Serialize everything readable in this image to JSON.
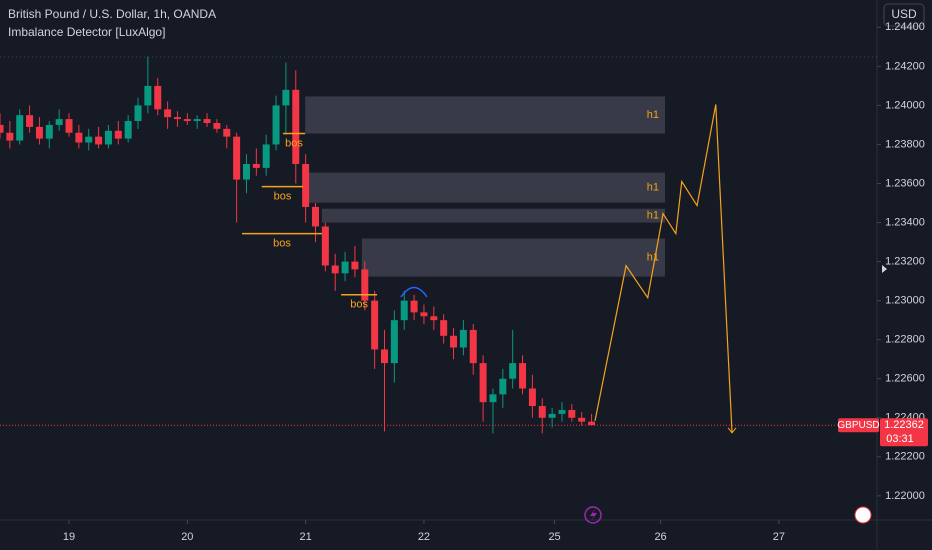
{
  "chart_data": {
    "type": "candlestick",
    "title": "British Pound / U.S. Dollar, 1h, OANDA",
    "indicator": "Imbalance Detector [LuxAlgo]",
    "currency": "USD",
    "up_color": "#089981",
    "down_color": "#f23645",
    "grid": false,
    "x": [
      -14,
      -12,
      -10,
      -8,
      -6,
      -4,
      -2,
      0,
      2,
      4,
      6,
      8,
      10,
      12,
      14,
      16,
      18,
      20,
      22,
      24,
      26,
      28,
      30,
      32,
      34,
      36,
      38,
      40,
      42,
      44,
      46,
      48,
      50,
      52,
      54,
      56,
      58,
      60,
      62,
      64,
      66,
      68,
      70,
      72,
      74,
      76,
      78,
      80,
      82,
      84,
      86,
      88,
      90,
      92,
      94,
      96,
      98,
      100,
      102,
      104,
      106
    ],
    "open": [
      1.239,
      1.2386,
      1.2382,
      1.2395,
      1.2389,
      1.2383,
      1.239,
      1.2393,
      1.2386,
      1.2381,
      1.2384,
      1.238,
      1.2387,
      1.2383,
      1.2392,
      1.24,
      1.241,
      1.2398,
      1.2394,
      1.2393,
      1.2392,
      1.2393,
      1.2391,
      1.2388,
      1.2384,
      1.2362,
      1.237,
      1.2368,
      1.238,
      1.24,
      1.2408,
      1.237,
      1.2348,
      1.2338,
      1.2318,
      1.2314,
      1.232,
      1.2316,
      1.23,
      1.2275,
      1.2268,
      1.229,
      1.23,
      1.2294,
      1.2292,
      1.229,
      1.2282,
      1.2276,
      1.2285,
      1.2268,
      1.2248,
      1.2252,
      1.226,
      1.2268,
      1.2255,
      1.2246,
      1.224,
      1.2242,
      1.2244,
      1.224,
      1.2238
    ],
    "high": [
      1.2396,
      1.2392,
      1.2398,
      1.24,
      1.2394,
      1.2392,
      1.2398,
      1.2396,
      1.239,
      1.2388,
      1.2389,
      1.239,
      1.2392,
      1.2395,
      1.2404,
      1.2425,
      1.2414,
      1.2402,
      1.2397,
      1.2396,
      1.2395,
      1.2396,
      1.2393,
      1.239,
      1.2386,
      1.2375,
      1.2378,
      1.2385,
      1.2405,
      1.2422,
      1.2418,
      1.2375,
      1.235,
      1.234,
      1.2324,
      1.2325,
      1.2328,
      1.232,
      1.2305,
      1.2285,
      1.2295,
      1.2305,
      1.2303,
      1.2298,
      1.2297,
      1.2293,
      1.2286,
      1.229,
      1.2288,
      1.2272,
      1.2255,
      1.2265,
      1.2285,
      1.2272,
      1.2262,
      1.225,
      1.2245,
      1.2248,
      1.2247,
      1.2243,
      1.2242
    ],
    "low": [
      1.2383,
      1.2378,
      1.238,
      1.2386,
      1.238,
      1.2378,
      1.2387,
      1.2384,
      1.2378,
      1.2377,
      1.2378,
      1.2378,
      1.238,
      1.2381,
      1.2388,
      1.2396,
      1.2395,
      1.2388,
      1.2389,
      1.239,
      1.2388,
      1.2389,
      1.2386,
      1.2378,
      1.234,
      1.2355,
      1.2364,
      1.2364,
      1.2377,
      1.2385,
      1.236,
      1.234,
      1.233,
      1.2315,
      1.2305,
      1.231,
      1.2312,
      1.2295,
      1.2265,
      1.2233,
      1.2258,
      1.2285,
      1.229,
      1.2288,
      1.2285,
      1.2278,
      1.227,
      1.2272,
      1.2262,
      1.2238,
      1.2232,
      1.2245,
      1.2255,
      1.2252,
      1.224,
      1.2232,
      1.2235,
      1.2238,
      1.2238,
      1.2236,
      1.22362
    ],
    "close": [
      1.2386,
      1.2382,
      1.2395,
      1.2389,
      1.2383,
      1.239,
      1.2393,
      1.2386,
      1.2381,
      1.2384,
      1.238,
      1.2387,
      1.2383,
      1.2392,
      1.24,
      1.241,
      1.2398,
      1.2394,
      1.2393,
      1.2392,
      1.2393,
      1.2391,
      1.2388,
      1.2384,
      1.2362,
      1.237,
      1.2368,
      1.238,
      1.24,
      1.2408,
      1.237,
      1.2348,
      1.2338,
      1.2318,
      1.2314,
      1.232,
      1.2316,
      1.23,
      1.2275,
      1.2268,
      1.229,
      1.23,
      1.2294,
      1.2292,
      1.229,
      1.2282,
      1.2276,
      1.2285,
      1.2268,
      1.2248,
      1.2252,
      1.226,
      1.2268,
      1.2255,
      1.2246,
      1.224,
      1.2242,
      1.2244,
      1.224,
      1.2238,
      1.22362
    ],
    "xlim": [
      -14,
      163.5
    ],
    "xticks": [
      {
        "value": 0,
        "label": "19"
      },
      {
        "value": 24,
        "label": "20"
      },
      {
        "value": 48,
        "label": "21"
      },
      {
        "value": 72,
        "label": "22"
      },
      {
        "value": 98.5,
        "label": "25"
      },
      {
        "value": 120,
        "label": "26"
      },
      {
        "value": 144,
        "label": "27"
      }
    ],
    "ylim": [
      1.2182,
      1.2454
    ],
    "yticks": [
      {
        "value": 1.244,
        "label": "1.24400"
      },
      {
        "value": 1.242,
        "label": "1.24200"
      },
      {
        "value": 1.24,
        "label": "1.24000"
      },
      {
        "value": 1.238,
        "label": "1.23800"
      },
      {
        "value": 1.236,
        "label": "1.23600"
      },
      {
        "value": 1.234,
        "label": "1.23400"
      },
      {
        "value": 1.232,
        "label": "1.23200"
      },
      {
        "value": 1.23,
        "label": "1.23000"
      },
      {
        "value": 1.228,
        "label": "1.22800"
      },
      {
        "value": 1.226,
        "label": "1.22600"
      },
      {
        "value": 1.224,
        "label": "1.22400"
      },
      {
        "value": 1.222,
        "label": "1.22200"
      },
      {
        "value": 1.22,
        "label": "1.22000"
      }
    ],
    "zone_color": "#f7a21b",
    "zones": [
      {
        "label": "h1",
        "top": 1.24046,
        "bottom": 1.23856,
        "x_start": 47.9,
        "x_end": 120.9
      },
      {
        "label": "h1",
        "top": 1.23656,
        "bottom": 1.23502,
        "x_start": 48.5,
        "x_end": 120.9
      },
      {
        "label": "h1",
        "top": 1.23471,
        "bottom": 1.234,
        "x_start": 51.3,
        "x_end": 120.9
      },
      {
        "label": "h1",
        "top": 1.23318,
        "bottom": 1.23123,
        "x_start": 59.4,
        "x_end": 120.9
      }
    ],
    "bos": [
      {
        "label": "bos",
        "price": 1.23856,
        "x_start": 43.4,
        "x_end": 47.9
      },
      {
        "label": "bos",
        "price": 1.23584,
        "x_start": 39.1,
        "x_end": 47.5
      },
      {
        "label": "bos",
        "price": 1.23343,
        "x_start": 35.1,
        "x_end": 51.3
      },
      {
        "label": "bos",
        "price": 1.2303,
        "x_start": 55.2,
        "x_end": 62.5
      }
    ],
    "projection": {
      "color": "#f7a21b",
      "x": [
        106.7,
        113.0,
        117.4,
        120.5,
        123.1,
        124.3,
        127.4,
        131.2,
        134.5
      ],
      "y": [
        1.22384,
        1.23179,
        1.23015,
        1.23446,
        1.23343,
        1.2361,
        1.23487,
        1.24005,
        1.22323
      ]
    },
    "last_price": {
      "symbol": "GBPUSD",
      "value": 1.22362,
      "countdown": "03:31"
    }
  }
}
